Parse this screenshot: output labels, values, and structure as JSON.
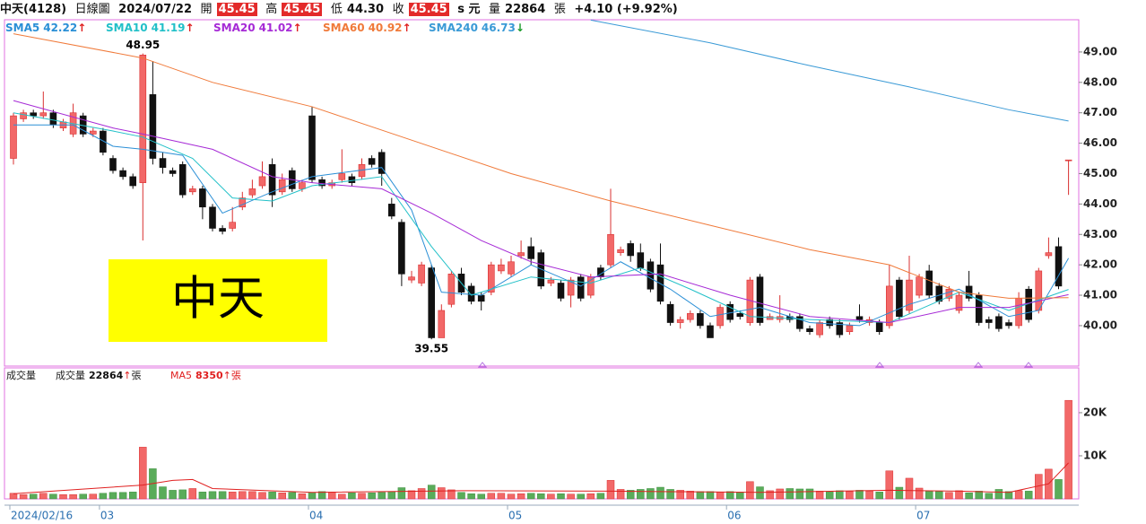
{
  "header": {
    "stock": "中天(4128)",
    "period": "日線圖",
    "date": "2024/07/22",
    "open_label": "開",
    "open": "45.45",
    "high_label": "高",
    "high": "45.45",
    "low_label": "低",
    "low": "44.30",
    "close_label": "收",
    "close": "45.45",
    "unit": "s 元",
    "volume_label": "量",
    "volume": "22864",
    "volume_unit": "張",
    "change": "+4.10 (+9.92%)"
  },
  "chart_data": [
    {
      "type": "candlestick",
      "annotation": "中天",
      "categories": [
        "2024/02/16",
        null,
        null,
        null,
        null,
        null,
        null,
        null,
        null,
        "03",
        null,
        null,
        null,
        null,
        null,
        null,
        null,
        null,
        null,
        null,
        null,
        null,
        null,
        null,
        null,
        null,
        null,
        null,
        null,
        null,
        "04",
        null,
        null,
        null,
        null,
        null,
        null,
        null,
        null,
        null,
        null,
        null,
        null,
        null,
        null,
        null,
        null,
        null,
        null,
        null,
        "05",
        null,
        null,
        null,
        null,
        null,
        null,
        null,
        null,
        null,
        null,
        null,
        null,
        null,
        null,
        null,
        null,
        null,
        null,
        null,
        null,
        null,
        "06",
        null,
        null,
        null,
        null,
        null,
        null,
        null,
        null,
        null,
        null,
        null,
        null,
        null,
        null,
        null,
        null,
        null,
        null,
        "07",
        null,
        null,
        null,
        null,
        null,
        null,
        null,
        null,
        null,
        null,
        null,
        null,
        null,
        null,
        null
      ],
      "open": [
        45.5,
        46.8,
        47.0,
        46.9,
        47.0,
        46.5,
        46.3,
        46.9,
        46.3,
        46.4,
        45.5,
        45.1,
        44.9,
        44.7,
        47.6,
        45.5,
        45.1,
        45.3,
        44.4,
        44.5,
        43.9,
        43.2,
        43.2,
        43.9,
        44.3,
        44.6,
        45.3,
        44.4,
        45.1,
        44.5,
        46.9,
        44.8,
        44.6,
        44.8,
        44.9,
        44.9,
        45.5,
        45.7,
        44.0,
        43.4,
        41.5,
        41.4,
        41.9,
        39.6,
        40.7,
        41.7,
        41.3,
        41.0,
        41.1,
        41.8,
        41.7,
        42.3,
        42.6,
        42.4,
        41.4,
        41.4,
        41.0,
        41.6,
        41.0,
        41.9,
        42.0,
        42.4,
        42.7,
        42.4,
        42.1,
        42.0,
        40.7,
        40.1,
        40.2,
        40.4,
        40.0,
        40.0,
        40.7,
        40.4,
        40.1,
        41.6,
        40.2,
        40.2,
        40.3,
        40.3,
        39.9,
        39.7,
        40.2,
        40.1,
        39.8,
        40.3,
        40.1,
        40.1,
        40.0,
        41.5,
        40.5,
        41.0,
        41.8,
        41.3,
        40.9,
        40.5,
        41.3,
        41.0,
        40.2,
        40.3,
        40.1,
        40.0,
        41.2,
        40.5,
        42.3,
        42.6,
        45.45
      ],
      "high": [
        47.0,
        47.1,
        47.1,
        47.7,
        47.1,
        46.8,
        47.3,
        47.0,
        46.5,
        46.5,
        45.6,
        45.2,
        45.0,
        48.95,
        48.7,
        45.7,
        45.2,
        45.4,
        44.6,
        44.6,
        44.0,
        43.3,
        43.9,
        44.4,
        44.8,
        45.4,
        45.5,
        45.0,
        45.2,
        44.8,
        47.2,
        44.9,
        44.8,
        45.8,
        45.0,
        45.5,
        45.6,
        45.8,
        44.2,
        43.5,
        41.8,
        42.1,
        42.0,
        40.7,
        41.8,
        41.9,
        41.4,
        41.1,
        42.1,
        42.2,
        42.3,
        42.8,
        42.9,
        42.5,
        41.6,
        41.5,
        41.6,
        41.7,
        41.7,
        42.0,
        44.5,
        42.6,
        42.8,
        42.7,
        42.2,
        42.7,
        40.8,
        40.3,
        40.5,
        40.5,
        40.1,
        40.7,
        40.8,
        40.5,
        41.6,
        41.7,
        40.4,
        41.0,
        40.4,
        40.4,
        40.0,
        40.2,
        40.3,
        40.2,
        40.1,
        40.7,
        40.3,
        40.2,
        42.0,
        41.6,
        42.3,
        41.7,
        42.0,
        41.4,
        41.3,
        41.1,
        41.8,
        41.1,
        40.3,
        40.4,
        40.2,
        41.1,
        41.3,
        41.9,
        42.9,
        42.9,
        45.45
      ],
      "low": [
        45.3,
        46.7,
        46.8,
        46.8,
        46.5,
        46.4,
        46.2,
        46.2,
        46.2,
        45.6,
        45.0,
        44.8,
        44.5,
        42.8,
        45.3,
        45.0,
        44.9,
        44.2,
        44.3,
        43.5,
        43.1,
        43.0,
        43.1,
        43.8,
        44.2,
        44.5,
        43.9,
        44.3,
        44.4,
        44.4,
        44.7,
        44.5,
        44.5,
        44.7,
        44.6,
        44.8,
        45.2,
        44.6,
        43.5,
        41.3,
        41.4,
        41.3,
        39.55,
        39.6,
        40.6,
        41.0,
        40.7,
        40.5,
        41.0,
        41.7,
        41.6,
        42.2,
        42.0,
        41.2,
        41.3,
        40.8,
        40.6,
        40.8,
        40.9,
        41.5,
        41.9,
        42.3,
        42.1,
        41.8,
        41.1,
        40.7,
        40.0,
        39.9,
        40.1,
        39.9,
        39.6,
        39.9,
        40.1,
        40.2,
        40.0,
        40.0,
        40.2,
        40.1,
        40.1,
        39.8,
        39.7,
        39.6,
        39.9,
        39.6,
        39.7,
        40.1,
        40.0,
        39.7,
        39.9,
        40.2,
        40.4,
        40.9,
        40.9,
        40.7,
        40.8,
        40.4,
        40.8,
        40.0,
        39.9,
        39.8,
        39.9,
        39.9,
        40.1,
        40.4,
        42.2,
        41.2,
        44.3
      ],
      "close": [
        46.9,
        47.0,
        46.9,
        47.0,
        46.6,
        46.7,
        47.0,
        46.3,
        46.4,
        45.7,
        45.1,
        44.9,
        44.6,
        48.9,
        45.5,
        45.2,
        45.0,
        44.3,
        44.5,
        43.9,
        43.2,
        43.1,
        43.4,
        44.2,
        44.5,
        44.9,
        44.3,
        44.8,
        44.5,
        44.7,
        44.8,
        44.6,
        44.7,
        45.0,
        44.7,
        45.3,
        45.3,
        45.0,
        43.6,
        41.7,
        41.6,
        42.0,
        39.6,
        40.5,
        41.7,
        41.1,
        40.8,
        40.8,
        42.0,
        42.0,
        42.1,
        42.4,
        42.2,
        41.3,
        41.5,
        40.9,
        41.5,
        40.9,
        41.6,
        41.6,
        43.0,
        42.5,
        42.3,
        41.9,
        41.2,
        40.8,
        40.1,
        40.2,
        40.4,
        40.0,
        39.6,
        40.6,
        40.2,
        40.3,
        41.5,
        40.1,
        40.3,
        40.3,
        40.2,
        39.9,
        39.8,
        40.1,
        40.0,
        39.7,
        40.0,
        40.2,
        40.2,
        39.8,
        41.3,
        40.3,
        41.5,
        41.6,
        41.0,
        40.8,
        41.2,
        41.0,
        40.9,
        40.1,
        40.1,
        39.9,
        40.0,
        40.9,
        40.2,
        41.8,
        42.4,
        41.3,
        45.45
      ],
      "series": [
        {
          "name": "SMA5",
          "legend_value": 42.22,
          "trend": "↑",
          "color": "#2a8fd6",
          "x": [
            0,
            6,
            10,
            13,
            17,
            21,
            26,
            30,
            37,
            40,
            43,
            47,
            52,
            57,
            61,
            66,
            70,
            75,
            80,
            85,
            90,
            95,
            100,
            103,
            106
          ],
          "values": [
            46.6,
            46.6,
            45.9,
            45.8,
            45.6,
            43.7,
            44.4,
            44.9,
            45.2,
            43.8,
            41.1,
            41.0,
            42.0,
            41.3,
            42.1,
            41.2,
            40.3,
            40.6,
            40.1,
            40.0,
            40.7,
            41.2,
            40.3,
            40.5,
            42.22
          ]
        },
        {
          "name": "SMA10",
          "legend_value": 41.19,
          "trend": "↑",
          "color": "#22c0c8",
          "x": [
            0,
            10,
            13,
            18,
            22,
            26,
            30,
            37,
            42,
            46,
            52,
            58,
            63,
            68,
            74,
            80,
            88,
            95,
            100,
            106
          ],
          "values": [
            47.0,
            46.4,
            46.2,
            45.5,
            44.2,
            44.1,
            44.6,
            44.9,
            42.6,
            41.0,
            41.6,
            41.4,
            41.9,
            41.2,
            40.3,
            40.2,
            40.1,
            41.1,
            40.5,
            41.19
          ]
        },
        {
          "name": "SMA20",
          "legend_value": 41.02,
          "trend": "↑",
          "color": "#a62ad6",
          "x": [
            0,
            10,
            13,
            20,
            26,
            30,
            37,
            42,
            47,
            52,
            58,
            65,
            72,
            80,
            88,
            95,
            100,
            106
          ],
          "values": [
            47.4,
            46.5,
            46.3,
            45.8,
            44.9,
            44.7,
            44.5,
            43.7,
            42.8,
            42.1,
            41.6,
            41.7,
            41.0,
            40.3,
            40.1,
            40.6,
            40.6,
            41.02
          ]
        },
        {
          "name": "SMA60",
          "legend_value": 40.92,
          "trend": "↑",
          "color": "#f07a3a",
          "x": [
            0,
            13,
            20,
            30,
            40,
            50,
            60,
            70,
            80,
            88,
            95,
            100,
            106
          ],
          "values": [
            49.6,
            48.8,
            48.0,
            47.2,
            46.1,
            45.0,
            44.1,
            43.3,
            42.5,
            42.0,
            41.1,
            40.9,
            40.92
          ]
        },
        {
          "name": "SMA240",
          "legend_value": 46.73,
          "trend": "↓",
          "color": "#3a9ad6",
          "x": [
            58,
            70,
            80,
            90,
            100,
            106
          ],
          "values": [
            50.05,
            49.3,
            48.55,
            47.85,
            47.1,
            46.73
          ]
        }
      ],
      "ylim": [
        38.67,
        50.06
      ],
      "yticks": [
        {
          "value": 40,
          "label": "40.00"
        },
        {
          "value": 41,
          "label": "41.00"
        },
        {
          "value": 42,
          "label": "42.00"
        },
        {
          "value": 43,
          "label": "43.00"
        },
        {
          "value": 44,
          "label": "44.00"
        },
        {
          "value": 45,
          "label": "45.00"
        },
        {
          "value": 46,
          "label": "46.00"
        },
        {
          "value": 47,
          "label": "47.00"
        },
        {
          "value": 48,
          "label": "48.00"
        },
        {
          "value": 49,
          "label": "49.00"
        }
      ]
    },
    {
      "type": "bar",
      "title": "成交量",
      "legend": [
        {
          "name": "成交量",
          "value": 22864,
          "trend": "↑",
          "unit": "張"
        },
        {
          "name": "MA5",
          "value": 8350,
          "trend": "↑",
          "unit": "張"
        }
      ],
      "values": [
        1300,
        1000,
        1100,
        1300,
        1100,
        1000,
        1000,
        1100,
        1100,
        1300,
        1500,
        1500,
        1600,
        12000,
        7000,
        2800,
        2000,
        2100,
        2400,
        1600,
        1700,
        1700,
        1600,
        1700,
        1700,
        1500,
        1600,
        1400,
        1500,
        1200,
        1500,
        1700,
        1500,
        1100,
        1400,
        1300,
        1400,
        1500,
        1700,
        2600,
        1900,
        2400,
        3200,
        2600,
        2100,
        1500,
        1200,
        1100,
        1300,
        1300,
        1100,
        1200,
        1300,
        1200,
        1100,
        1200,
        1100,
        1100,
        1200,
        1300,
        4300,
        2200,
        2000,
        2200,
        2400,
        2700,
        2200,
        2000,
        1800,
        1700,
        1700,
        1600,
        1700,
        1600,
        4000,
        2800,
        1900,
        2300,
        2400,
        2300,
        2300,
        1800,
        1700,
        1900,
        1700,
        2000,
        1800,
        1600,
        6500,
        2700,
        4800,
        2500,
        1800,
        1700,
        1500,
        1900,
        1400,
        1800,
        1300,
        2200,
        1700,
        1900,
        1800,
        5700,
        6900,
        4500,
        22864
      ],
      "ma_series": {
        "name": "MA5",
        "color": "#e02020",
        "x": [
          0,
          13,
          16,
          18,
          20,
          30,
          45,
          60,
          75,
          88,
          95,
          100,
          104,
          106
        ],
        "values": [
          1200,
          3200,
          4300,
          4500,
          2400,
          1500,
          1900,
          1800,
          1500,
          2000,
          1800,
          1500,
          3500,
          8350
        ]
      },
      "ylim": [
        0,
        30400
      ],
      "yticks": [
        {
          "value": 10000,
          "label": "10K"
        },
        {
          "value": 20000,
          "label": "20K"
        }
      ]
    }
  ]
}
